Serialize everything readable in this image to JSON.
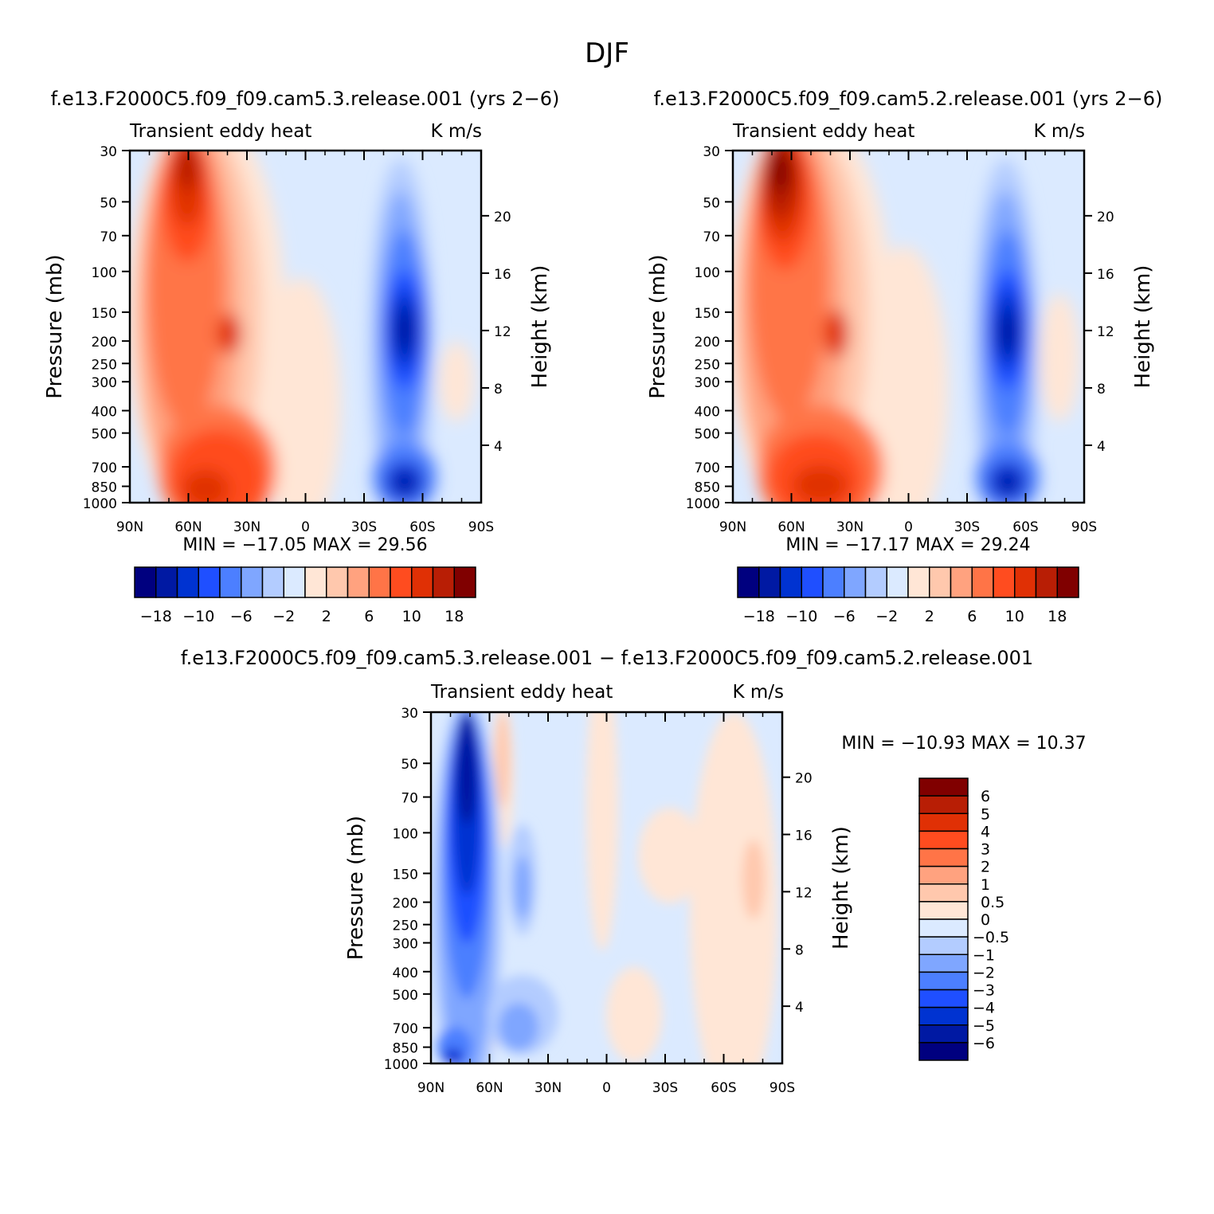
{
  "page_title": "DJF",
  "panels": [
    {
      "title": "f.e13.F2000C5.f09_f09.cam5.3.release.001 (yrs 2−6)",
      "left_label": "Transient eddy heat",
      "right_label": "K m/s",
      "stats": "MIN = −17.05   MAX =   29.56"
    },
    {
      "title": "f.e13.F2000C5.f09_f09.cam5.2.release.001 (yrs 2−6)",
      "left_label": "Transient eddy heat",
      "right_label": "K m/s",
      "stats": "MIN = −17.17   MAX =   29.24"
    },
    {
      "title": "f.e13.F2000C5.f09_f09.cam5.3.release.001 − f.e13.F2000C5.f09_f09.cam5.2.release.001",
      "left_label": "Transient eddy heat",
      "right_label": "K m/s",
      "stats": "MIN = −10.93   MAX =   10.37"
    }
  ],
  "axes": {
    "ylabel": "Pressure (mb)",
    "y2label": "Height (km)",
    "pressure_ticks": [
      "30",
      "50",
      "70",
      "100",
      "150",
      "200",
      "250",
      "300",
      "400",
      "500",
      "700",
      "850",
      "1000"
    ],
    "height_ticks": [
      "20",
      "16",
      "12",
      "8",
      "4"
    ],
    "lat_ticks": [
      "90N",
      "60N",
      "30N",
      "0",
      "30S",
      "60S",
      "90S"
    ]
  },
  "colorbar_top": {
    "colors": [
      "#00007f",
      "#0019a3",
      "#0033d1",
      "#1f4fff",
      "#4c7fff",
      "#7fa6ff",
      "#b3ccff",
      "#dbeaff",
      "#ffe6d6",
      "#ffc8ad",
      "#ffa27f",
      "#ff7447",
      "#ff4c1f",
      "#e03005",
      "#b81e05",
      "#800000"
    ],
    "labels": [
      "−18",
      "−10",
      "−6",
      "−2",
      "2",
      "6",
      "10",
      "18"
    ]
  },
  "colorbar_diff": {
    "colors": [
      "#00007f",
      "#0019a3",
      "#0033d1",
      "#1f4fff",
      "#4c7fff",
      "#7fa6ff",
      "#b3ccff",
      "#dbeaff",
      "#ffe6d6",
      "#ffc8ad",
      "#ffa27f",
      "#ff7447",
      "#ff4c1f",
      "#e03005",
      "#b81e05",
      "#800000"
    ],
    "labels": [
      "6",
      "5",
      "4",
      "3",
      "2",
      "1",
      "0.5",
      "0",
      "−0.5",
      "−1",
      "−2",
      "−3",
      "−4",
      "−5",
      "−6"
    ]
  },
  "chart_data": [
    {
      "type": "heatmap",
      "title": "f.e13.F2000C5.f09_f09.cam5.3.release.001 (yrs 2−6)",
      "xlabel": "",
      "ylabel": "Pressure (mb)",
      "x_ticks": [
        "90N",
        "60N",
        "30N",
        "0",
        "30S",
        "60S",
        "90S"
      ],
      "y_ticks": [
        30,
        50,
        70,
        100,
        150,
        200,
        250,
        300,
        400,
        500,
        700,
        850,
        1000
      ],
      "y_log_scale": true,
      "min": -17.05,
      "max": 29.56,
      "features": [
        {
          "kind": "max",
          "lat": 62,
          "p": 40,
          "value": 24
        },
        {
          "kind": "max",
          "lat": 62,
          "p": 880,
          "value": 26
        },
        {
          "kind": "max",
          "lat": 42,
          "p": 880,
          "value": 24
        },
        {
          "kind": "min",
          "lat": -48,
          "p": 190,
          "value": -16
        },
        {
          "kind": "min",
          "lat": -48,
          "p": 850,
          "value": -15
        }
      ]
    },
    {
      "type": "heatmap",
      "title": "f.e13.F2000C5.f09_f09.cam5.2.release.001 (yrs 2−6)",
      "xlabel": "",
      "ylabel": "Pressure (mb)",
      "x_ticks": [
        "90N",
        "60N",
        "30N",
        "0",
        "30S",
        "60S",
        "90S"
      ],
      "y_ticks": [
        30,
        50,
        70,
        100,
        150,
        200,
        250,
        300,
        400,
        500,
        700,
        850,
        1000
      ],
      "y_log_scale": true,
      "min": -17.17,
      "max": 29.24,
      "features": [
        {
          "kind": "max",
          "lat": 68,
          "p": 40,
          "value": 28
        },
        {
          "kind": "max",
          "lat": 62,
          "p": 880,
          "value": 24
        },
        {
          "kind": "max",
          "lat": 45,
          "p": 880,
          "value": 26
        },
        {
          "kind": "min",
          "lat": -47,
          "p": 190,
          "value": -16
        },
        {
          "kind": "min",
          "lat": -47,
          "p": 850,
          "value": -15
        }
      ]
    },
    {
      "type": "heatmap",
      "title": "f.e13.F2000C5.f09_f09.cam5.3.release.001 − f.e13.F2000C5.f09_f09.cam5.2.release.001",
      "xlabel": "",
      "ylabel": "Pressure (mb)",
      "x_ticks": [
        "90N",
        "60N",
        "30N",
        "0",
        "30S",
        "60S",
        "90S"
      ],
      "y_ticks": [
        30,
        50,
        70,
        100,
        150,
        200,
        250,
        300,
        400,
        500,
        700,
        850,
        1000
      ],
      "y_log_scale": true,
      "min": -10.93,
      "max": 10.37,
      "features": [
        {
          "kind": "min",
          "lat": 71,
          "p": 60,
          "value": -9
        },
        {
          "kind": "min",
          "lat": 82,
          "p": 990,
          "value": -6
        },
        {
          "kind": "max",
          "lat": 64,
          "p": 60,
          "value": 2
        },
        {
          "kind": "max",
          "lat": -78,
          "p": 170,
          "value": 2
        },
        {
          "kind": "min",
          "lat": 43,
          "p": 190,
          "value": -3
        }
      ]
    }
  ]
}
